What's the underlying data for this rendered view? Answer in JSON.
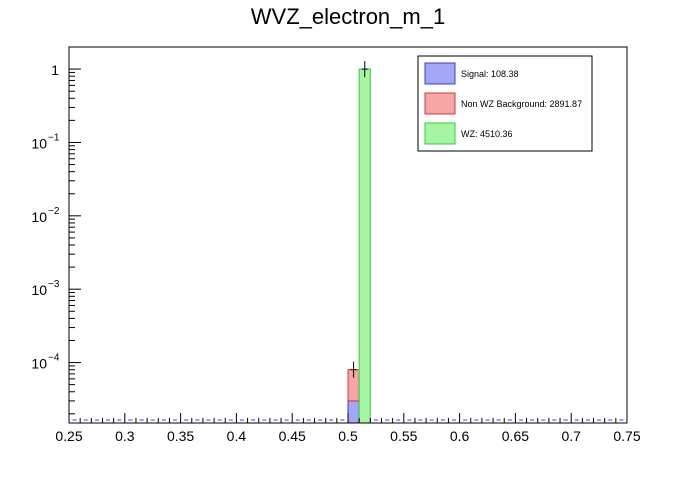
{
  "chart_data": {
    "type": "bar",
    "title": "WVZ_electron_m_1",
    "xlabel": "",
    "ylabel": "",
    "xlim": [
      0.25,
      0.75
    ],
    "ylim": [
      1.5e-05,
      2
    ],
    "y_scale": "log",
    "grid": false,
    "stacked": true,
    "legend_position": "top-right",
    "x_ticks": [
      "0.25",
      "0.3",
      "0.35",
      "0.4",
      "0.45",
      "0.5",
      "0.55",
      "0.6",
      "0.65",
      "0.7",
      "0.75"
    ],
    "y_ticks": [
      {
        "value": 1,
        "base": "1",
        "exp": ""
      },
      {
        "value": 0.1,
        "base": "10",
        "exp": "−1"
      },
      {
        "value": 0.01,
        "base": "10",
        "exp": "−2"
      },
      {
        "value": 0.001,
        "base": "10",
        "exp": "−3"
      },
      {
        "value": 0.0001,
        "base": "10",
        "exp": "−4"
      }
    ],
    "bins": [
      {
        "x0": 0.5,
        "x1": 0.51,
        "signal": 3e-05,
        "background": 5e-05,
        "wz": 0
      },
      {
        "x0": 0.51,
        "x1": 0.52,
        "signal": 0,
        "background": 0,
        "wz": 1.0
      }
    ],
    "series": [
      {
        "key": "signal",
        "name": "Signal: 108.38",
        "fill": "#a5a5f5",
        "stroke": "#3c3cc8"
      },
      {
        "key": "background",
        "name": "Non WZ Background: 2891.87",
        "fill": "#f5a5a5",
        "stroke": "#c83c3c"
      },
      {
        "key": "wz",
        "name": "WZ: 4510.36",
        "fill": "#a5f5a5",
        "stroke": "#3cc83c"
      }
    ]
  }
}
